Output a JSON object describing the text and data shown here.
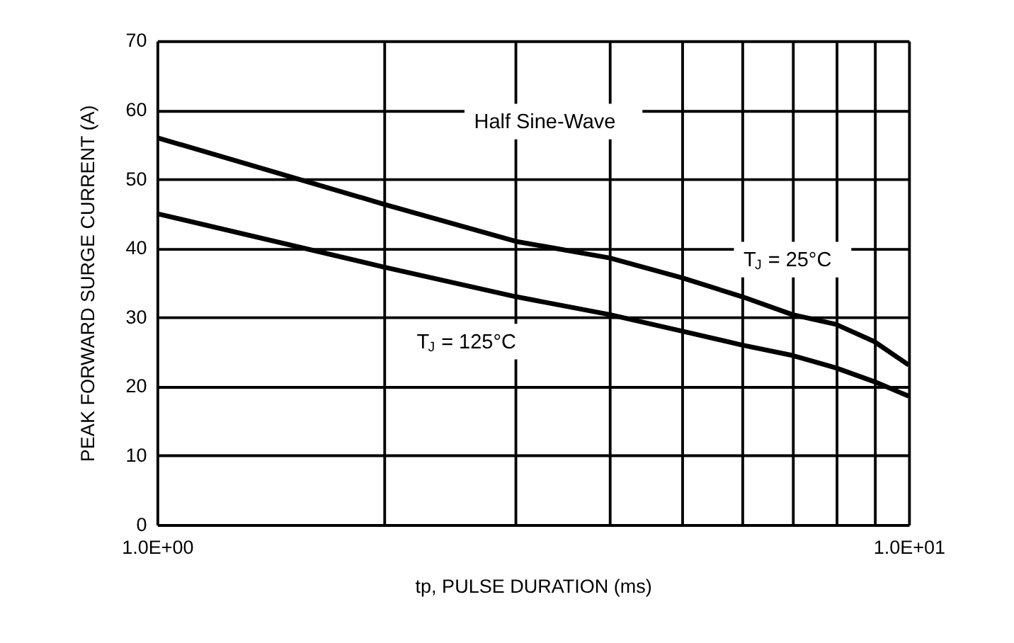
{
  "chart_data": {
    "type": "line",
    "xlabel": "tp, PULSE DURATION (ms)",
    "ylabel": "PEAK FORWARD SURGE CURRENT (A)",
    "x": [
      1,
      2,
      3,
      4,
      5,
      6,
      7,
      8,
      9,
      10
    ],
    "series": [
      {
        "name": "T$_{J}$ = 25°C",
        "color": "#000000",
        "values": [
          56,
          46.4,
          41,
          38.6,
          35.7,
          33,
          30.4,
          29,
          26.5,
          23.1
        ]
      },
      {
        "name": "T$_{J}$ = 125°C",
        "color": "#000000",
        "values": [
          45,
          37.3,
          33,
          30.4,
          28,
          26,
          24.5,
          22.7,
          20.7,
          18.6
        ]
      }
    ],
    "annotations": [
      "Half Sine-Wave"
    ],
    "log": "x",
    "xlim": [
      1,
      10
    ],
    "ylim": [
      0,
      70
    ],
    "xticks": [
      {
        "value": 1,
        "label": "1.0E+00"
      },
      {
        "value": 2,
        "label": null
      },
      {
        "value": 3,
        "label": null
      },
      {
        "value": 4,
        "label": null
      },
      {
        "value": 5,
        "label": null
      },
      {
        "value": 6,
        "label": null
      },
      {
        "value": 7,
        "label": null
      },
      {
        "value": 8,
        "label": null
      },
      {
        "value": 9,
        "label": null
      },
      {
        "value": 10,
        "label": "1.0E+01"
      }
    ],
    "yticks": [
      0,
      10,
      20,
      30,
      40,
      50,
      60,
      70
    ],
    "grid": true,
    "legend": false,
    "marker": "none",
    "line_style": "solid"
  }
}
